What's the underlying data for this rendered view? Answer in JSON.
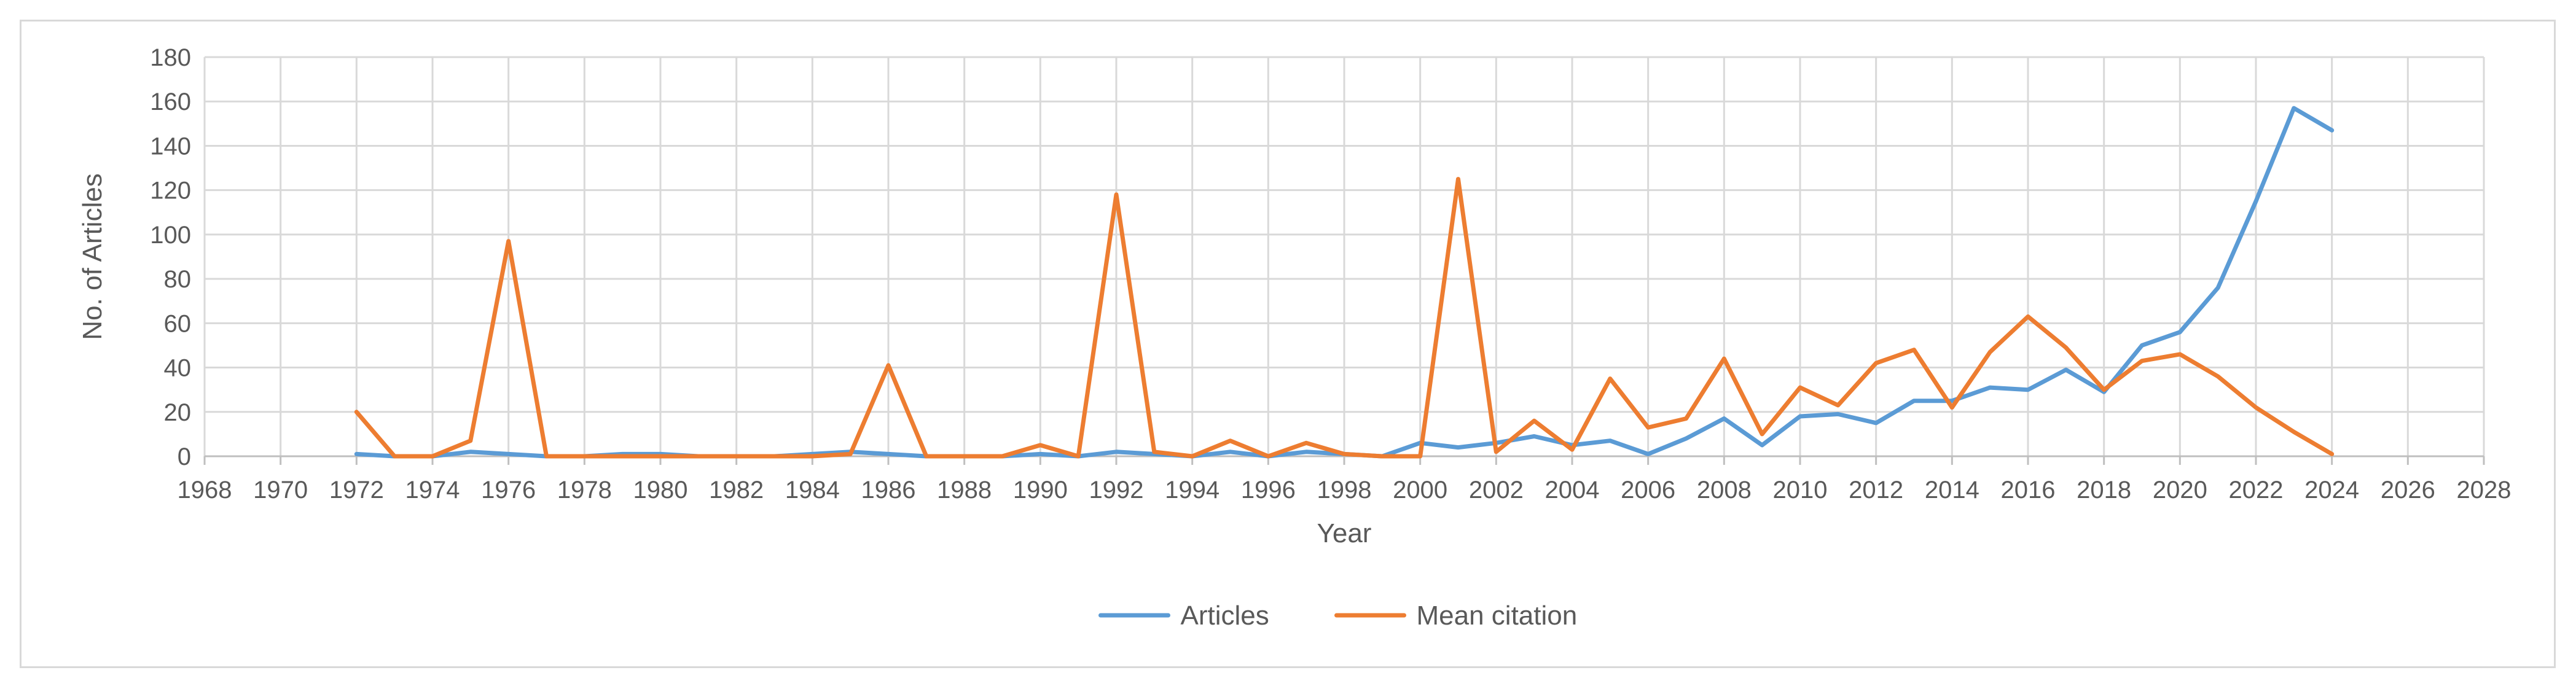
{
  "chart_data": {
    "type": "line",
    "title": "",
    "xlabel": "Year",
    "ylabel": "No. of Articles",
    "xlim": [
      1968,
      2028
    ],
    "ylim": [
      0,
      180
    ],
    "x_ticks": [
      1968,
      1970,
      1972,
      1974,
      1976,
      1978,
      1980,
      1982,
      1984,
      1986,
      1988,
      1990,
      1992,
      1994,
      1996,
      1998,
      2000,
      2002,
      2004,
      2006,
      2008,
      2010,
      2012,
      2014,
      2016,
      2018,
      2020,
      2022,
      2024,
      2026,
      2028
    ],
    "y_ticks": [
      0,
      20,
      40,
      60,
      80,
      100,
      120,
      140,
      160,
      180
    ],
    "grid": true,
    "legend_position": "bottom",
    "series": [
      {
        "name": "Articles",
        "color": "#5b9bd5",
        "x": [
          1972,
          1973,
          1974,
          1975,
          1976,
          1977,
          1978,
          1979,
          1980,
          1981,
          1982,
          1983,
          1984,
          1985,
          1986,
          1987,
          1988,
          1989,
          1990,
          1991,
          1992,
          1993,
          1994,
          1995,
          1996,
          1997,
          1998,
          1999,
          2000,
          2001,
          2002,
          2003,
          2004,
          2005,
          2006,
          2007,
          2008,
          2009,
          2010,
          2011,
          2012,
          2013,
          2014,
          2015,
          2016,
          2017,
          2018,
          2019,
          2020,
          2021,
          2022,
          2023,
          2024
        ],
        "values": [
          1,
          0,
          0,
          2,
          1,
          0,
          0,
          1,
          1,
          0,
          0,
          0,
          1,
          2,
          1,
          0,
          0,
          0,
          1,
          0,
          2,
          1,
          0,
          2,
          0,
          2,
          1,
          0,
          6,
          4,
          6,
          9,
          5,
          7,
          1,
          8,
          17,
          5,
          18,
          19,
          15,
          25,
          25,
          31,
          30,
          39,
          29,
          50,
          56,
          76,
          115,
          157,
          147
        ]
      },
      {
        "name": "Mean citation",
        "color": "#ed7d31",
        "x": [
          1972,
          1973,
          1974,
          1975,
          1976,
          1977,
          1978,
          1979,
          1980,
          1981,
          1982,
          1983,
          1984,
          1985,
          1986,
          1987,
          1988,
          1989,
          1990,
          1991,
          1992,
          1993,
          1994,
          1995,
          1996,
          1997,
          1998,
          1999,
          2000,
          2001,
          2002,
          2003,
          2004,
          2005,
          2006,
          2007,
          2008,
          2009,
          2010,
          2011,
          2012,
          2013,
          2014,
          2015,
          2016,
          2017,
          2018,
          2019,
          2020,
          2021,
          2022,
          2023,
          2024
        ],
        "values": [
          20,
          0,
          0,
          7,
          97,
          0,
          0,
          0,
          0,
          0,
          0,
          0,
          0,
          1,
          41,
          0,
          0,
          0,
          5,
          0,
          118,
          2,
          0,
          7,
          0,
          6,
          1,
          0,
          0,
          125,
          2,
          16,
          3,
          35,
          13,
          17,
          44,
          10,
          31,
          23,
          42,
          48,
          22,
          47,
          63,
          49,
          30,
          43,
          46,
          36,
          22,
          11,
          1
        ]
      }
    ]
  }
}
